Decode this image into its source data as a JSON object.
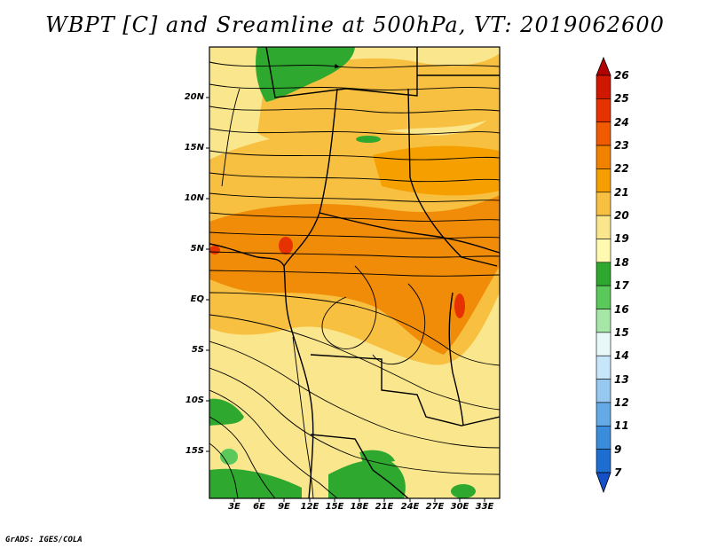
{
  "title": "WBPT [C] and Sreamline at 500hPa, VT: 2019062600",
  "credit": "GrADS: IGES/COLA",
  "map": {
    "latitude_labels": [
      "20N",
      "15N",
      "10N",
      "5N",
      "EQ",
      "5S",
      "10S",
      "15S"
    ],
    "longitude_labels": [
      "3E",
      "6E",
      "9E",
      "12E",
      "15E",
      "18E",
      "21E",
      "24E",
      "27E",
      "30E",
      "33E"
    ]
  },
  "colorbar": {
    "levels": [
      "26",
      "25",
      "24",
      "23",
      "22",
      "21",
      "20",
      "19",
      "18",
      "17",
      "16",
      "15",
      "14",
      "13",
      "12",
      "11",
      "9",
      "7"
    ],
    "colors": [
      "#b30000",
      "#d01800",
      "#e63200",
      "#f05a00",
      "#f08200",
      "#f5a000",
      "#f8c040",
      "#fae68c",
      "#fffab0",
      "#2ea82e",
      "#5ac85a",
      "#a6e6a6",
      "#e8f8f8",
      "#c8e6fa",
      "#96c8f0",
      "#64aae6",
      "#3c8cdc",
      "#1e6ed2",
      "#1450c8"
    ]
  }
}
